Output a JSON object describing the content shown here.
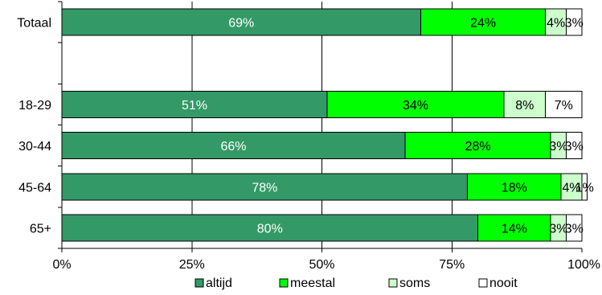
{
  "chart_data": {
    "type": "bar",
    "orientation": "horizontal",
    "stacked": true,
    "categories": [
      "Totaal",
      "",
      "18-29",
      "30-44",
      "45-64",
      "65+"
    ],
    "series": [
      {
        "name": "altijd",
        "values": [
          69,
          null,
          51,
          66,
          78,
          80
        ],
        "labels": [
          "69%",
          "",
          "51%",
          "66%",
          "78%",
          "80%"
        ],
        "color": "#339966",
        "label_color": "#ffffff"
      },
      {
        "name": "meestal",
        "values": [
          24,
          null,
          34,
          28,
          18,
          14
        ],
        "labels": [
          "24%",
          "",
          "34%",
          "28%",
          "18%",
          "14%"
        ],
        "color": "#00ff00",
        "label_color": "#000000"
      },
      {
        "name": "soms",
        "values": [
          4,
          null,
          8,
          3,
          4,
          3
        ],
        "labels": [
          "4%",
          "",
          "8%",
          "3%",
          "4%",
          "3%"
        ],
        "color": "#ccffcc",
        "label_color": "#000000"
      },
      {
        "name": "nooit",
        "values": [
          3,
          null,
          7,
          3,
          1,
          3
        ],
        "labels": [
          "3%",
          "",
          "7%",
          "3%",
          "1%",
          "3%"
        ],
        "color": "#ffffff",
        "label_color": "#000000"
      }
    ],
    "xlim": [
      0,
      100
    ],
    "xticks": [
      "0%",
      "25%",
      "50%",
      "75%",
      "100%"
    ],
    "grid": true,
    "legend": "bottom"
  }
}
